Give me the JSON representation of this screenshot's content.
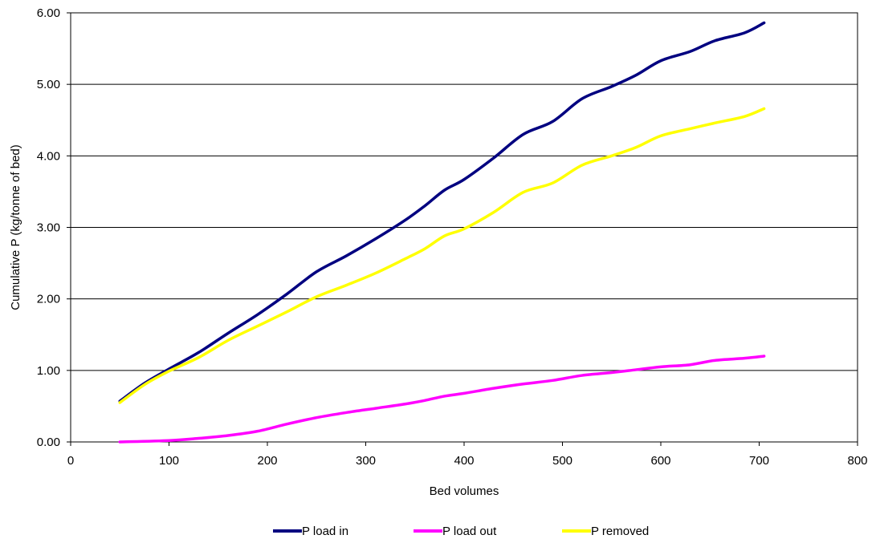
{
  "chart_data": {
    "type": "line",
    "title": "",
    "xlabel": "Bed volumes",
    "ylabel": "Cumulative P (kg/tonne of bed)",
    "xlim": [
      0,
      800
    ],
    "ylim": [
      0,
      6
    ],
    "x_ticks": [
      "0",
      "100",
      "200",
      "300",
      "400",
      "500",
      "600",
      "700",
      "800"
    ],
    "y_ticks": [
      "0.00",
      "1.00",
      "2.00",
      "3.00",
      "4.00",
      "5.00",
      "6.00"
    ],
    "grid": "horizontal",
    "legend_position": "bottom",
    "series": [
      {
        "name": "P load in",
        "color": "#000080",
        "x": [
          50,
          75,
          100,
          130,
          160,
          190,
          220,
          250,
          280,
          310,
          340,
          360,
          380,
          400,
          430,
          460,
          490,
          520,
          550,
          575,
          600,
          630,
          655,
          685,
          705
        ],
        "y": [
          0.57,
          0.82,
          1.02,
          1.25,
          1.52,
          1.78,
          2.07,
          2.38,
          2.6,
          2.84,
          3.1,
          3.3,
          3.52,
          3.67,
          3.97,
          4.3,
          4.48,
          4.8,
          4.97,
          5.13,
          5.33,
          5.46,
          5.61,
          5.72,
          5.86
        ]
      },
      {
        "name": "P load out",
        "color": "#FF00FF",
        "x": [
          50,
          100,
          130,
          160,
          190,
          220,
          250,
          280,
          310,
          340,
          360,
          380,
          400,
          430,
          460,
          490,
          520,
          550,
          575,
          600,
          630,
          655,
          685,
          705
        ],
        "y": [
          0.0,
          0.02,
          0.05,
          0.09,
          0.15,
          0.25,
          0.34,
          0.41,
          0.47,
          0.53,
          0.58,
          0.64,
          0.68,
          0.75,
          0.81,
          0.86,
          0.93,
          0.97,
          1.01,
          1.05,
          1.08,
          1.14,
          1.17,
          1.2
        ]
      },
      {
        "name": "P removed",
        "color": "#FFFF00",
        "x": [
          50,
          75,
          100,
          130,
          160,
          190,
          220,
          250,
          280,
          310,
          340,
          360,
          380,
          400,
          430,
          460,
          490,
          520,
          550,
          575,
          600,
          630,
          655,
          685,
          705
        ],
        "y": [
          0.55,
          0.8,
          0.99,
          1.18,
          1.42,
          1.62,
          1.82,
          2.03,
          2.19,
          2.36,
          2.56,
          2.7,
          2.88,
          2.98,
          3.21,
          3.49,
          3.62,
          3.87,
          4.0,
          4.12,
          4.28,
          4.38,
          4.46,
          4.55,
          4.66
        ]
      }
    ]
  }
}
